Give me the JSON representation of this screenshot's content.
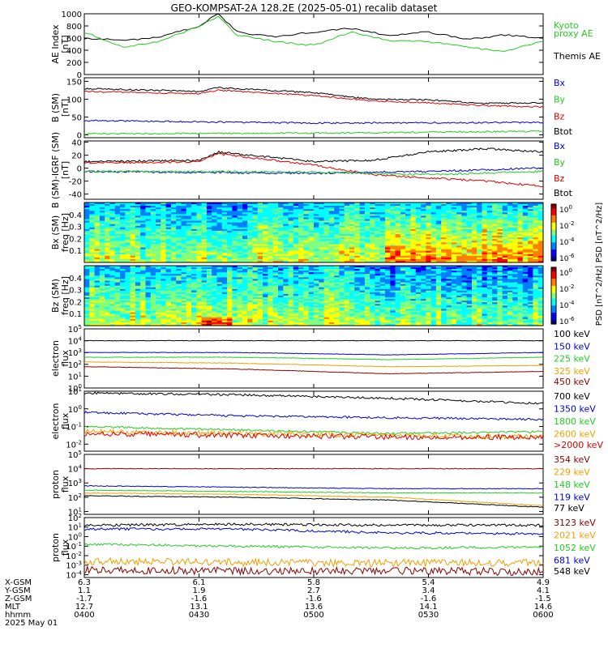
{
  "title": "GEO-KOMPSAT-2A 128.2E (2025-05-01) recalib dataset",
  "colors": {
    "black": "#000000",
    "blue": "#0000d0",
    "green": "#22cc22",
    "red": "#e00000",
    "orange": "#f0a000",
    "darkred": "#8b0000",
    "kyoto": "#22cc22"
  },
  "panels": {
    "ae": {
      "ylabel": "AE Index\n[nT]",
      "ticks": [
        "1000",
        "800",
        "600",
        "400",
        "200",
        "0"
      ],
      "tick_values": [
        1000,
        800,
        600,
        400,
        200,
        0
      ],
      "ylim": [
        0,
        1000
      ],
      "legend": [
        {
          "text": "Kyoto",
          "color": "green"
        },
        {
          "text": "proxy AE",
          "color": "green"
        },
        {
          "text": "Themis AE",
          "color": "black"
        }
      ]
    },
    "bsm": {
      "ylabel": "B (SM)\n[nT]",
      "ticks": [
        "150",
        "100",
        "50",
        "0"
      ],
      "tick_values": [
        150,
        100,
        50,
        0
      ],
      "ylim": [
        -8,
        160
      ],
      "legend": [
        {
          "text": "Bx",
          "color": "blue"
        },
        {
          "text": "By",
          "color": "green"
        },
        {
          "text": "Bz",
          "color": "red"
        },
        {
          "text": "Btot",
          "color": "black"
        }
      ]
    },
    "bigrf": {
      "ylabel": "B (SM)-IGRF (SM)\n[nT]",
      "ticks": [
        "40",
        "20",
        "0",
        "-20",
        "-40"
      ],
      "tick_values": [
        40,
        20,
        0,
        -20,
        -40
      ],
      "ylim": [
        -48,
        42
      ],
      "legend": [
        {
          "text": "Bx",
          "color": "blue"
        },
        {
          "text": "By",
          "color": "green"
        },
        {
          "text": "Bz",
          "color": "red"
        },
        {
          "text": "Btot",
          "color": "black"
        }
      ]
    },
    "specbx": {
      "ylabel": "Bx (SM)\nfreq [Hz]",
      "ticks": [
        "0.4",
        "0.3",
        "0.2",
        "0.1"
      ],
      "tick_values": [
        0.4,
        0.3,
        0.2,
        0.1
      ],
      "ylim": [
        0,
        0.5
      ],
      "cbar_ticks": [
        "10^0",
        "10^-2",
        "10^-4",
        "10^-6"
      ],
      "cbar_label": "PSD [nT^2/Hz]"
    },
    "specbz": {
      "ylabel": "Bz (SM)\nfreq [Hz]",
      "ticks": [
        "0.4",
        "0.3",
        "0.2",
        "0.1"
      ],
      "tick_values": [
        0.4,
        0.3,
        0.2,
        0.1
      ],
      "ylim": [
        0,
        0.5
      ],
      "cbar_ticks": [
        "10^0",
        "10^-2",
        "10^-4",
        "10^-6"
      ],
      "cbar_label": "PSD [nT^2/Hz]"
    },
    "eflux1": {
      "ylabel": "electron\nflux",
      "ticks": [
        "10^5",
        "10^4",
        "10^3",
        "10^2",
        "10^1",
        "10^0"
      ],
      "tick_values": [
        5,
        4,
        3,
        2,
        1,
        0
      ],
      "ylim": [
        0,
        5
      ],
      "legend": [
        {
          "text": "100 keV",
          "color": "black"
        },
        {
          "text": "150 keV",
          "color": "blue"
        },
        {
          "text": "225 keV",
          "color": "green"
        },
        {
          "text": "325 keV",
          "color": "orange"
        },
        {
          "text": "450 keV",
          "color": "darkred"
        }
      ]
    },
    "eflux2": {
      "ylabel": "electron\nflux",
      "ticks": [
        "10^1",
        "10^0",
        "10^-1",
        "10^-2"
      ],
      "tick_values": [
        1,
        0,
        -1,
        -2
      ],
      "ylim": [
        -2.4,
        1
      ],
      "legend": [
        {
          "text": "700 keV",
          "color": "black"
        },
        {
          "text": "1350 keV",
          "color": "blue"
        },
        {
          "text": "1800 keV",
          "color": "green"
        },
        {
          "text": "2600 keV",
          "color": "orange"
        },
        {
          "text": ">2000 keV",
          "color": "red"
        }
      ]
    },
    "pflux1": {
      "ylabel": "proton\nflux",
      "ticks": [
        "10^5",
        "10^4",
        "10^3",
        "10^2",
        "10^1"
      ],
      "tick_values": [
        5,
        4,
        3,
        2,
        1
      ],
      "ylim": [
        0.8,
        5
      ],
      "legend": [
        {
          "text": "354 keV",
          "color": "darkred"
        },
        {
          "text": "229 keV",
          "color": "orange"
        },
        {
          "text": "148 keV",
          "color": "green"
        },
        {
          "text": "119 keV",
          "color": "blue"
        },
        {
          "text": "77 keV",
          "color": "black"
        }
      ]
    },
    "pflux2": {
      "ylabel": "proton\nflux",
      "ticks": [
        "10^2",
        "10^1",
        "10^0",
        "10^-1",
        "10^-2",
        "10^-3",
        "10^-4"
      ],
      "tick_values": [
        2,
        1,
        0,
        -1,
        -2,
        -3,
        -4
      ],
      "ylim": [
        -4.3,
        2
      ],
      "legend": [
        {
          "text": "3123 keV",
          "color": "darkred"
        },
        {
          "text": "2021 keV",
          "color": "orange"
        },
        {
          "text": "1052 keV",
          "color": "green"
        },
        {
          "text": "681 keV",
          "color": "blue"
        },
        {
          "text": "548 keV",
          "color": "black"
        }
      ]
    }
  },
  "x_axis": {
    "row_labels": [
      "X-GSM",
      "Y-GSM",
      "Z-GSM",
      "MLT",
      "hhmm",
      "2025 May 01"
    ],
    "columns": [
      [
        "6.3",
        "1.1",
        "-1.7",
        "12.7",
        "0400"
      ],
      [
        "6.1",
        "1.9",
        "-1.6",
        "13.1",
        "0430"
      ],
      [
        "5.8",
        "2.7",
        "-1.6",
        "13.6",
        "0500"
      ],
      [
        "5.4",
        "3.4",
        "-1.6",
        "14.1",
        "0530"
      ],
      [
        "4.9",
        "4.1",
        "-1.5",
        "14.6",
        "0600"
      ]
    ]
  },
  "chart_data": {
    "type": "line",
    "x_range": [
      "04:00",
      "06:00"
    ],
    "panels": [
      {
        "id": "ae",
        "series": [
          {
            "name": "Themis AE",
            "x": [
              "04:00",
              "04:10",
              "04:20",
              "04:30",
              "04:35",
              "04:40",
              "04:50",
              "05:00",
              "05:10",
              "05:20",
              "05:30",
              "05:40",
              "05:50",
              "06:00"
            ],
            "values": [
              600,
              560,
              620,
              800,
              1000,
              700,
              620,
              700,
              760,
              640,
              700,
              580,
              650,
              600
            ]
          },
          {
            "name": "Kyoto proxy AE",
            "x": [
              "04:00",
              "04:10",
              "04:20",
              "04:30",
              "04:35",
              "04:40",
              "04:50",
              "05:00",
              "05:10",
              "05:20",
              "05:30",
              "05:40",
              "05:50",
              "06:00"
            ],
            "values": [
              700,
              450,
              550,
              800,
              950,
              650,
              540,
              480,
              700,
              560,
              540,
              450,
              380,
              560
            ]
          }
        ]
      },
      {
        "id": "bsm",
        "series": [
          {
            "name": "Btot",
            "x": [
              "04:00",
              "04:30",
              "04:35",
              "05:00",
              "05:15",
              "05:30",
              "05:45",
              "06:00"
            ],
            "values": [
              130,
              122,
              132,
              118,
              100,
              98,
              88,
              90
            ]
          },
          {
            "name": "Bz",
            "x": [
              "04:00",
              "04:30",
              "04:35",
              "05:00",
              "05:15",
              "05:30",
              "05:45",
              "06:00"
            ],
            "values": [
              122,
              115,
              125,
              110,
              95,
              90,
              82,
              78
            ]
          },
          {
            "name": "Bx",
            "x": [
              "04:00",
              "05:00",
              "06:00"
            ],
            "values": [
              40,
              33,
              35
            ]
          },
          {
            "name": "By",
            "x": [
              "04:00",
              "05:00",
              "06:00"
            ],
            "values": [
              3,
              5,
              10
            ]
          }
        ]
      },
      {
        "id": "bigrf",
        "series": [
          {
            "name": "Btot",
            "x": [
              "04:00",
              "04:30",
              "04:35",
              "05:00",
              "05:15",
              "05:30",
              "05:45",
              "06:00"
            ],
            "values": [
              10,
              12,
              25,
              10,
              12,
              25,
              30,
              25
            ]
          },
          {
            "name": "Bz",
            "x": [
              "04:00",
              "04:30",
              "04:35",
              "05:00",
              "05:15",
              "05:30",
              "05:45",
              "06:00"
            ],
            "values": [
              8,
              10,
              22,
              5,
              -10,
              -15,
              -20,
              -28
            ]
          },
          {
            "name": "Bx",
            "x": [
              "04:00",
              "05:00",
              "05:30",
              "06:00"
            ],
            "values": [
              -5,
              -8,
              -5,
              0
            ]
          },
          {
            "name": "By",
            "x": [
              "04:00",
              "05:00",
              "05:30",
              "06:00"
            ],
            "values": [
              -5,
              -6,
              -10,
              -5
            ]
          }
        ]
      },
      {
        "id": "eflux1",
        "series": [
          {
            "name": "100 keV",
            "values": [
              4,
              4,
              4,
              4
            ]
          },
          {
            "name": "150 keV",
            "values": [
              3,
              3,
              2.8,
              3
            ]
          },
          {
            "name": "225 keV",
            "values": [
              2.6,
              2.6,
              2.4,
              2.6
            ]
          },
          {
            "name": "325 keV",
            "values": [
              2.2,
              2.1,
              1.8,
              1.9
            ]
          },
          {
            "name": "450 keV",
            "values": [
              1.8,
              1.6,
              1.2,
              1.4
            ]
          }
        ]
      },
      {
        "id": "eflux2",
        "series": [
          {
            "name": "700 keV",
            "values": [
              0.9,
              0.8,
              0.6,
              0.3
            ]
          },
          {
            "name": "1350 keV",
            "values": [
              -0.2,
              -0.4,
              -0.5,
              -0.6
            ]
          },
          {
            "name": "1800 keV",
            "values": [
              -1.0,
              -1.2,
              -1.4,
              -1.3
            ]
          },
          {
            "name": "2600 keV",
            "values": [
              -1.3,
              -1.4,
              -1.5,
              -1.6
            ]
          },
          {
            "name": ">2000 keV",
            "values": [
              -1.4,
              -1.5,
              -1.6,
              -1.6
            ]
          }
        ]
      },
      {
        "id": "pflux1",
        "series": [
          {
            "name": "354 keV",
            "values": [
              4,
              4,
              4,
              4
            ]
          },
          {
            "name": "229 keV",
            "values": [
              2.3,
              2.2,
              2,
              1.4
            ]
          },
          {
            "name": "148 keV",
            "values": [
              2.5,
              2.4,
              2.3,
              2.3
            ]
          },
          {
            "name": "119 keV",
            "values": [
              2.8,
              2.7,
              2.6,
              2.6
            ]
          },
          {
            "name": "77 keV",
            "values": [
              2.1,
              2,
              1.8,
              1.3
            ]
          }
        ]
      },
      {
        "id": "pflux2",
        "series": [
          {
            "name": "548 keV",
            "values": [
              1.2,
              1.3,
              1.2,
              1.2
            ]
          },
          {
            "name": "681 keV",
            "values": [
              0.8,
              0.8,
              0.4,
              0.3
            ]
          },
          {
            "name": "1052 keV",
            "values": [
              -0.8,
              -1,
              -1.2,
              -1.1
            ]
          },
          {
            "name": "2021 keV",
            "values": [
              -2.6,
              -2.7,
              -2.8,
              -2.7
            ]
          },
          {
            "name": "3123 keV",
            "values": [
              -3.5,
              -3.6,
              -3.6,
              -3.7
            ]
          }
        ]
      }
    ]
  }
}
